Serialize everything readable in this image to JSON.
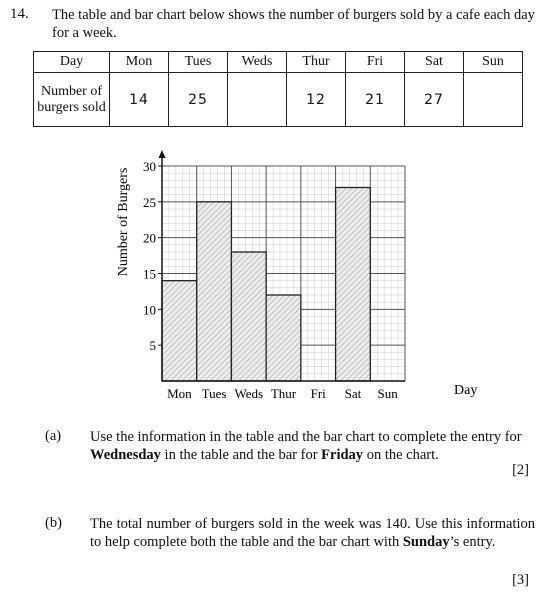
{
  "question": {
    "number": "14.",
    "intro": "The table and bar chart below shows the number of burgers sold by a cafe each day for a week."
  },
  "table": {
    "day_header": "Day",
    "row_label": "Number of burgers sold",
    "days": [
      "Mon",
      "Tues",
      "Weds",
      "Thur",
      "Fri",
      "Sat",
      "Sun"
    ],
    "values": [
      "14",
      "25",
      "",
      "12",
      "21",
      "27",
      ""
    ]
  },
  "chart_data": {
    "type": "bar",
    "categories": [
      "Mon",
      "Tues",
      "Weds",
      "Thur",
      "Fri",
      "Sat",
      "Sun"
    ],
    "values": [
      14,
      25,
      18,
      12,
      null,
      27,
      null
    ],
    "ylabel": "Number of Burgers",
    "xlabel": "Day",
    "ylim": [
      0,
      30
    ],
    "yticks": [
      5,
      10,
      15,
      20,
      25,
      30
    ],
    "grid": true,
    "bar_fill": "hatched"
  },
  "part_a": {
    "label": "(a)",
    "text_1": "Use the information in the table and the bar chart to complete the entry for ",
    "bold_1": "Wednesday",
    "text_2": " in the table and the bar for ",
    "bold_2": "Friday",
    "text_3": " on the chart.",
    "marks": "[2]"
  },
  "part_b": {
    "label": "(b)",
    "text_1": "The total number of burgers sold in the week was 140.  Use this information to help complete both the table and the bar chart with ",
    "bold_1": "Sunday",
    "text_2": "’s entry.",
    "marks": "[3]"
  }
}
